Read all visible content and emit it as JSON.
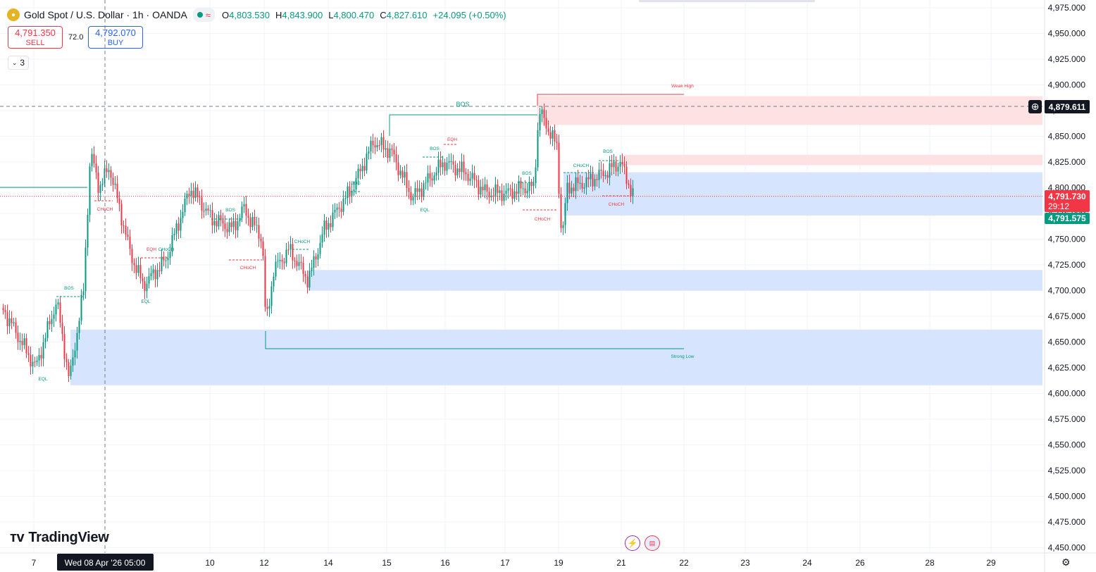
{
  "header": {
    "symbol_title": "Gold Spot / U.S. Dollar · 1h · OANDA",
    "badge_wave": "≈",
    "open_label": "O",
    "open_value": "4,803.530",
    "high_label": "H",
    "high_value": "4,843.900",
    "low_label": "L",
    "low_value": "4,800.470",
    "close_label": "C",
    "close_value": "4,827.610",
    "change": "+24.095 (+0.50%)"
  },
  "trade": {
    "sell_price": "4,791.350",
    "sell_label": "SELL",
    "spread": "72.0",
    "buy_price": "4,792.070",
    "buy_label": "BUY"
  },
  "layers": {
    "count": "3",
    "chevron": "⌄"
  },
  "price_axis": {
    "ticks": [
      "4,975.000",
      "4,950.000",
      "4,925.000",
      "4,900.000",
      "4,875.000",
      "4,850.000",
      "4,825.000",
      "4,800.000",
      "4,775.000",
      "4,750.000",
      "4,725.000",
      "4,700.000",
      "4,675.000",
      "4,650.000",
      "4,625.000",
      "4,600.000",
      "4,575.000",
      "4,550.000",
      "4,525.000",
      "4,500.000",
      "4,475.000",
      "4,450.000"
    ],
    "crosshair_price": "4,879.611",
    "last_price": "4,791.730",
    "countdown": "29:12",
    "bid_price": "4,791.575",
    "colors": {
      "last": "#f23645",
      "bid": "#089981",
      "crosshair": "#131722"
    }
  },
  "time_axis": {
    "labels": [
      {
        "text": "7",
        "bold": false
      },
      {
        "text": "10",
        "bold": false
      },
      {
        "text": "12",
        "bold": false
      },
      {
        "text": "14",
        "bold": false
      },
      {
        "text": "15",
        "bold": false
      },
      {
        "text": "16",
        "bold": false
      },
      {
        "text": "17",
        "bold": false
      },
      {
        "text": "19",
        "bold": false
      },
      {
        "text": "21",
        "bold": false
      },
      {
        "text": "22",
        "bold": false
      },
      {
        "text": "23",
        "bold": false
      },
      {
        "text": "24",
        "bold": false
      },
      {
        "text": "26",
        "bold": false
      },
      {
        "text": "28",
        "bold": false
      },
      {
        "text": "29",
        "bold": false
      }
    ],
    "crosshair_time": "Wed 08 Apr '26   05:00"
  },
  "annotations": {
    "weak_high": "Weak High",
    "strong_low": "Strong Low",
    "labels": [
      {
        "text": "BOS",
        "color": "#089981"
      },
      {
        "text": "BOS",
        "color": "#089981"
      },
      {
        "text": "BOS",
        "color": "#089981"
      },
      {
        "text": "BOS",
        "color": "#089981"
      },
      {
        "text": "BOS",
        "color": "#089981"
      },
      {
        "text": "BOS",
        "color": "#089981"
      },
      {
        "text": "BOS",
        "color": "#089981"
      },
      {
        "text": "CHoCH",
        "color": "#f23645"
      },
      {
        "text": "CHoCH",
        "color": "#089981"
      },
      {
        "text": "CHoCH",
        "color": "#f23645"
      },
      {
        "text": "CHoCH",
        "color": "#089981"
      },
      {
        "text": "CHoCH",
        "color": "#f23645"
      },
      {
        "text": "CHoCH",
        "color": "#089981"
      },
      {
        "text": "CHoCH",
        "color": "#f23645"
      },
      {
        "text": "EQH",
        "color": "#f23645"
      },
      {
        "text": "EQH",
        "color": "#f23645"
      },
      {
        "text": "EQL",
        "color": "#089981"
      },
      {
        "text": "EQL",
        "color": "#089981"
      },
      {
        "text": "EQL",
        "color": "#089981"
      }
    ]
  },
  "branding": {
    "logo_text": "TradingView",
    "logo_mark": "𝟭𝟳"
  },
  "icons": {
    "flash": "lightning-icon",
    "flag": "us-flag-icon",
    "settings": "gear-icon"
  },
  "colors": {
    "up": "#089981",
    "down": "#f23645",
    "supply_zone": "#fde1e3",
    "demand_zone": "#d6e4fd",
    "grid": "#f0f3fa"
  }
}
